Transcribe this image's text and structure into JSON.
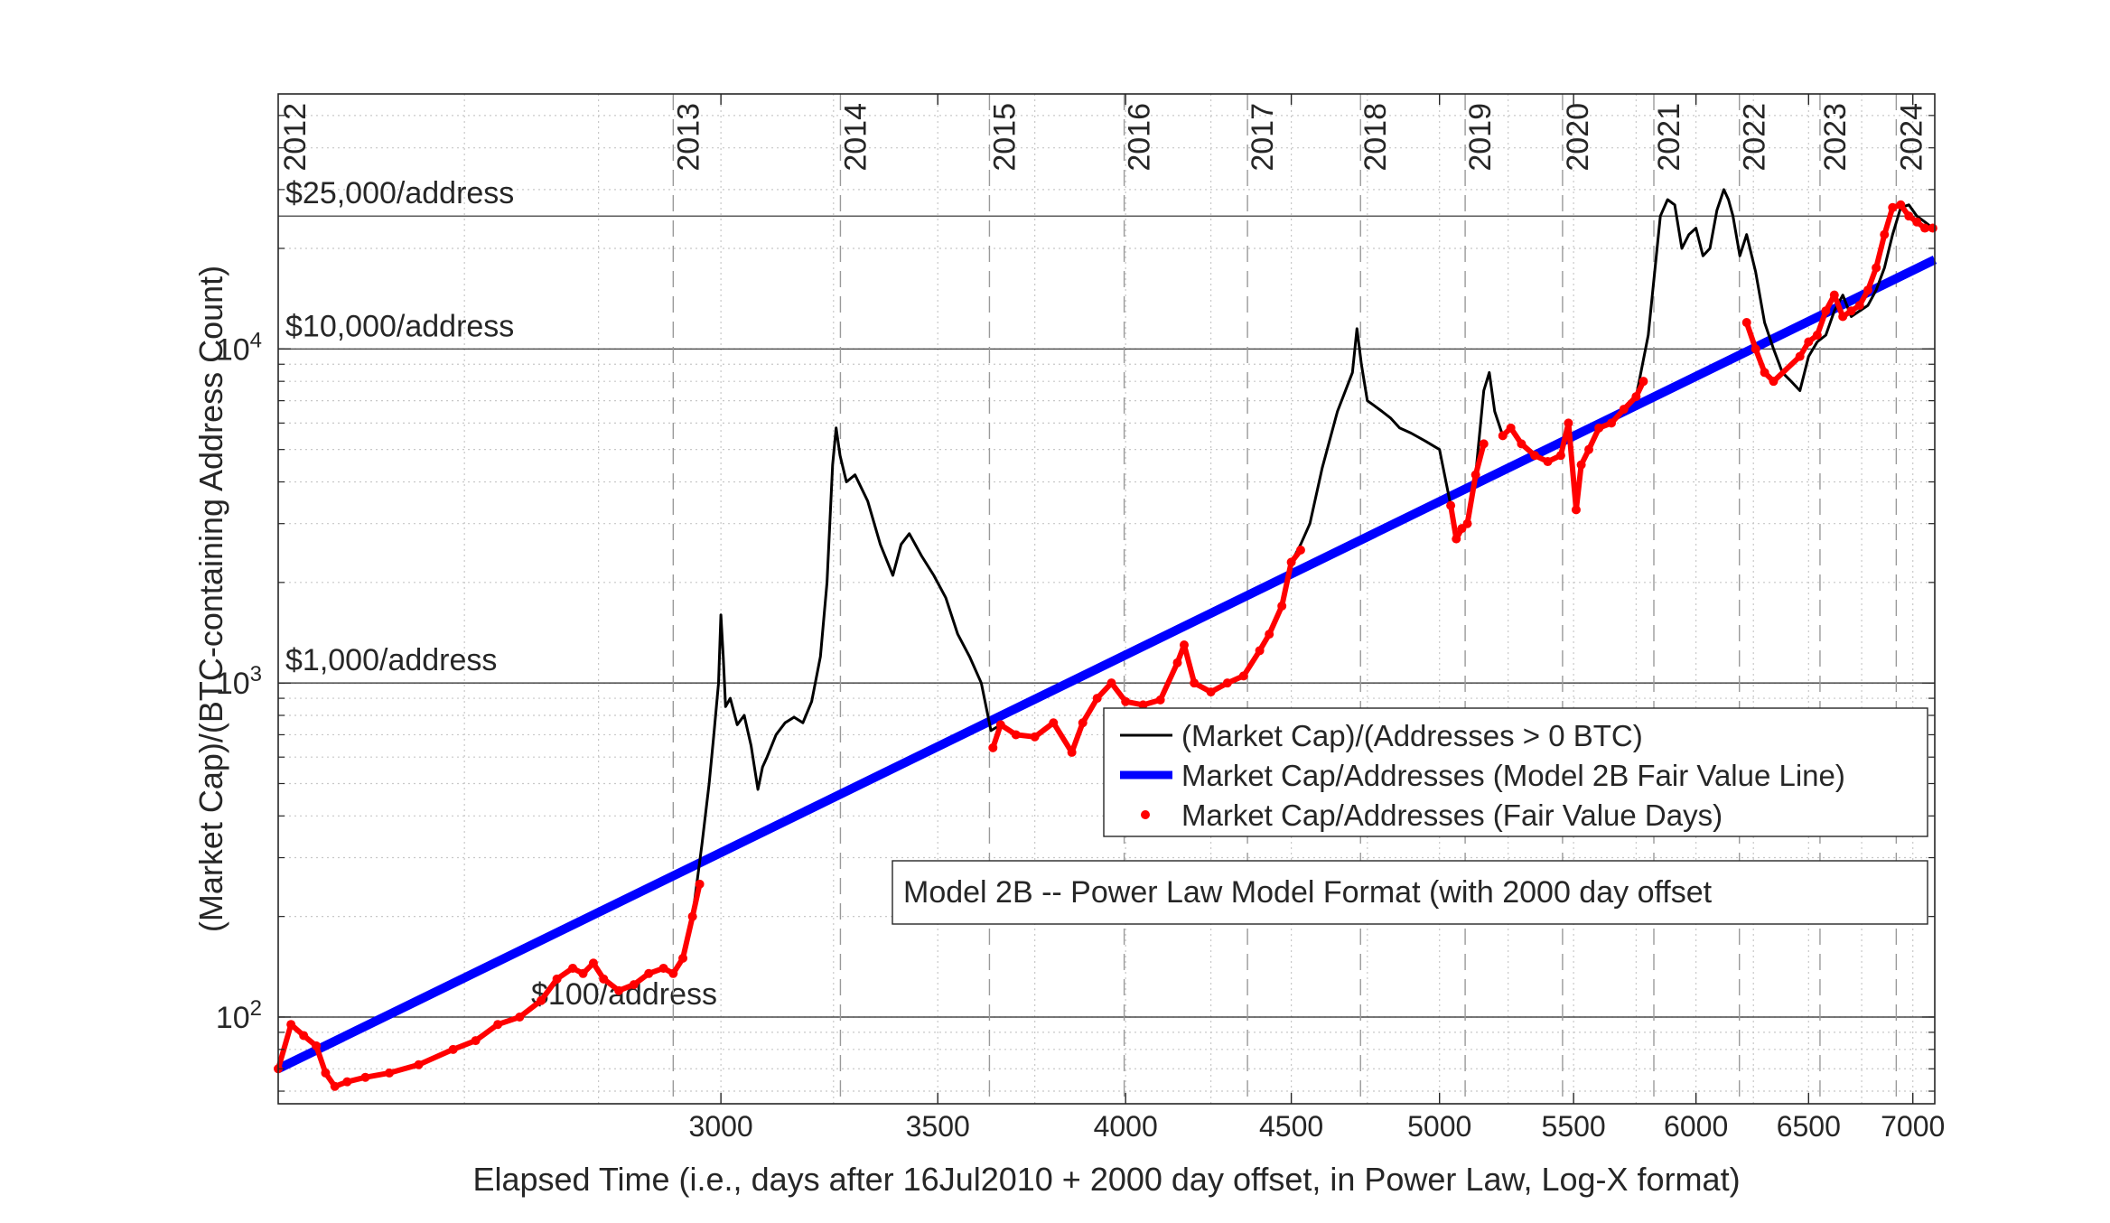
{
  "chart_data": {
    "type": "line",
    "x_scale": "log",
    "y_scale": "log",
    "xlim": [
      2190,
      7110
    ],
    "ylim": [
      55,
      58000
    ],
    "xlabel": "Elapsed Time (i.e., days after 16Jul2010 + 2000 day offset, in Power Law, Log-X format)",
    "ylabel": "(Market Cap)/(BTC-containing Address Count)",
    "x_ticks": [
      {
        "value": 3000,
        "label": "3000"
      },
      {
        "value": 3500,
        "label": "3500"
      },
      {
        "value": 4000,
        "label": "4000"
      },
      {
        "value": 4500,
        "label": "4500"
      },
      {
        "value": 5000,
        "label": "5000"
      },
      {
        "value": 5500,
        "label": "5500"
      },
      {
        "value": 6000,
        "label": "6000"
      },
      {
        "value": 6500,
        "label": "6500"
      },
      {
        "value": 7000,
        "label": "7000"
      }
    ],
    "y_ticks": [
      {
        "value": 100,
        "base": "10",
        "exp": "2"
      },
      {
        "value": 1000,
        "base": "10",
        "exp": "3"
      },
      {
        "value": 10000,
        "base": "10",
        "exp": "4"
      }
    ],
    "grid": true,
    "year_markers": [
      {
        "label": "2012",
        "x": 2170
      },
      {
        "label": "2013",
        "x": 2900
      },
      {
        "label": "2014",
        "x": 3266
      },
      {
        "label": "2015",
        "x": 3631
      },
      {
        "label": "2016",
        "x": 3996
      },
      {
        "label": "2017",
        "x": 4362
      },
      {
        "label": "2018",
        "x": 4727
      },
      {
        "label": "2019",
        "x": 5092
      },
      {
        "label": "2020",
        "x": 5457
      },
      {
        "label": "2021",
        "x": 5823
      },
      {
        "label": "2022",
        "x": 6188
      },
      {
        "label": "2023",
        "x": 6553
      },
      {
        "label": "2024",
        "x": 6918
      }
    ],
    "reference_lines": [
      {
        "label": "$25,000/address",
        "y": 25000
      },
      {
        "label": "$10,000/address",
        "y": 10000
      },
      {
        "label": "$1,000/address",
        "y": 1000
      },
      {
        "label": "$100/address",
        "y": 100
      }
    ],
    "fair_value_line": {
      "name": "Market Cap/Addresses (Model 2B Fair Value Line)",
      "x": [
        2190,
        7110
      ],
      "y": [
        70,
        18500
      ],
      "color": "#0000ff"
    },
    "series": [
      {
        "name": "(Market Cap)/(Addresses > 0 BTC)",
        "color": "#000000",
        "x": [
          2190,
          2210,
          2230,
          2250,
          2265,
          2280,
          2300,
          2330,
          2370,
          2420,
          2480,
          2520,
          2560,
          2600,
          2640,
          2670,
          2700,
          2720,
          2740,
          2760,
          2790,
          2820,
          2850,
          2880,
          2900,
          2920,
          2940,
          2960,
          2975,
          2985,
          2995,
          3000,
          3005,
          3010,
          3020,
          3035,
          3050,
          3065,
          3080,
          3090,
          3100,
          3120,
          3140,
          3160,
          3180,
          3200,
          3220,
          3235,
          3248,
          3256,
          3265,
          3280,
          3300,
          3330,
          3360,
          3390,
          3410,
          3430,
          3460,
          3490,
          3520,
          3550,
          3580,
          3610,
          3635,
          3660,
          3700,
          3750,
          3800,
          3850,
          3880,
          3920,
          3960,
          4000,
          4050,
          4100,
          4150,
          4170,
          4200,
          4250,
          4300,
          4350,
          4400,
          4430,
          4470,
          4500,
          4530,
          4560,
          4600,
          4650,
          4700,
          4715,
          4730,
          4750,
          4770,
          4800,
          4830,
          4860,
          4900,
          4950,
          5000,
          5040,
          5060,
          5080,
          5100,
          5130,
          5160,
          5180,
          5200,
          5230,
          5260,
          5300,
          5350,
          5400,
          5450,
          5480,
          5510,
          5530,
          5560,
          5600,
          5650,
          5700,
          5750,
          5800,
          5850,
          5880,
          5910,
          5940,
          5970,
          6000,
          6030,
          6060,
          6090,
          6120,
          6140,
          6160,
          6190,
          6220,
          6260,
          6300,
          6340,
          6380,
          6420,
          6460,
          6500,
          6540,
          6580,
          6620,
          6660,
          6700,
          6740,
          6780,
          6820,
          6860,
          6900,
          6940,
          6980,
          7020,
          7060,
          7100
        ],
        "y": [
          70,
          95,
          88,
          82,
          68,
          62,
          64,
          66,
          68,
          72,
          80,
          85,
          95,
          100,
          112,
          130,
          140,
          135,
          145,
          130,
          120,
          125,
          135,
          140,
          135,
          150,
          200,
          330,
          500,
          700,
          1000,
          1600,
          1200,
          850,
          900,
          750,
          800,
          650,
          480,
          560,
          600,
          700,
          760,
          790,
          760,
          880,
          1200,
          2000,
          4500,
          5800,
          4800,
          4000,
          4200,
          3500,
          2600,
          2100,
          2600,
          2800,
          2400,
          2100,
          1800,
          1400,
          1200,
          1000,
          720,
          750,
          700,
          690,
          760,
          620,
          760,
          900,
          1000,
          880,
          860,
          890,
          1150,
          1300,
          1000,
          940,
          1000,
          1050,
          1250,
          1400,
          1700,
          2300,
          2600,
          3000,
          4400,
          6500,
          8500,
          11500,
          9000,
          7000,
          6800,
          6500,
          6200,
          5800,
          5600,
          5300,
          5000,
          3400,
          2700,
          2900,
          3000,
          4200,
          7500,
          8500,
          6500,
          5500,
          5800,
          5200,
          4800,
          4600,
          4800,
          6000,
          3300,
          4500,
          5000,
          5800,
          6000,
          6600,
          7200,
          11000,
          25000,
          28000,
          27000,
          20000,
          22000,
          23000,
          19000,
          20000,
          26000,
          30000,
          28000,
          25000,
          19000,
          22000,
          17000,
          12000,
          10000,
          8500,
          8000,
          7500,
          9500,
          10500,
          11000,
          13000,
          14500,
          12500,
          13000,
          13500,
          15000,
          17500,
          22000,
          26500,
          27000,
          25000,
          24000,
          23000
        ]
      },
      {
        "name": "Market Cap/Addresses (Fair Value Days)",
        "color": "#ff0000",
        "segments": [
          {
            "x": [
              2190,
              2210,
              2230,
              2250,
              2265,
              2280,
              2300,
              2330,
              2370,
              2420,
              2480,
              2520,
              2560,
              2600,
              2640,
              2670,
              2700,
              2720,
              2740,
              2760,
              2790,
              2820,
              2850,
              2880,
              2900,
              2920,
              2940,
              2955
            ],
            "y": [
              70,
              95,
              88,
              82,
              68,
              62,
              64,
              66,
              68,
              72,
              80,
              85,
              95,
              100,
              112,
              130,
              140,
              135,
              145,
              130,
              120,
              125,
              135,
              140,
              135,
              150,
              200,
              250
            ]
          },
          {
            "x": [
              3640,
              3660,
              3700,
              3750,
              3800,
              3850,
              3880,
              3920,
              3960,
              4000,
              4050,
              4100,
              4150,
              4170,
              4200,
              4250,
              4300,
              4350,
              4400,
              4430,
              4470,
              4500,
              4530
            ],
            "y": [
              640,
              750,
              700,
              690,
              760,
              620,
              760,
              900,
              1000,
              880,
              860,
              890,
              1150,
              1300,
              1000,
              940,
              1000,
              1050,
              1250,
              1400,
              1700,
              2300,
              2500
            ]
          },
          {
            "x": [
              5040,
              5060,
              5080,
              5100,
              5130,
              5160
            ],
            "y": [
              3400,
              2700,
              2900,
              3000,
              4200,
              5200
            ]
          },
          {
            "x": [
              5230,
              5260,
              5300,
              5350,
              5400,
              5450,
              5480,
              5510,
              5530,
              5560,
              5600,
              5650,
              5700,
              5750,
              5780
            ],
            "y": [
              5500,
              5800,
              5200,
              4800,
              4600,
              4800,
              6000,
              3300,
              4500,
              5000,
              5800,
              6000,
              6600,
              7200,
              8000
            ]
          },
          {
            "x": [
              6220,
              6260,
              6300,
              6340,
              6460,
              6500,
              6540,
              6580,
              6620,
              6660,
              6700,
              6740,
              6780,
              6820,
              6860,
              6900,
              6940,
              6980,
              7020,
              7060,
              7100
            ],
            "y": [
              12000,
              10000,
              8500,
              8000,
              9500,
              10500,
              11000,
              13000,
              14500,
              12500,
              13000,
              13500,
              15000,
              17500,
              22000,
              26500,
              27000,
              25000,
              24000,
              23000,
              23000
            ]
          }
        ]
      }
    ],
    "legend": {
      "placement": "right-center",
      "entries": [
        {
          "label": "(Market Cap)/(Addresses > 0 BTC)",
          "style": "line",
          "color": "#000000"
        },
        {
          "label": "Market Cap/Addresses (Model 2B Fair Value Line)",
          "style": "thick-line",
          "color": "#0000ff"
        },
        {
          "label": "Market Cap/Addresses (Fair Value Days)",
          "style": "dot",
          "color": "#ff0000"
        }
      ]
    },
    "annotation": "Model 2B -- Power Law Model Format (with 2000 day offset"
  }
}
